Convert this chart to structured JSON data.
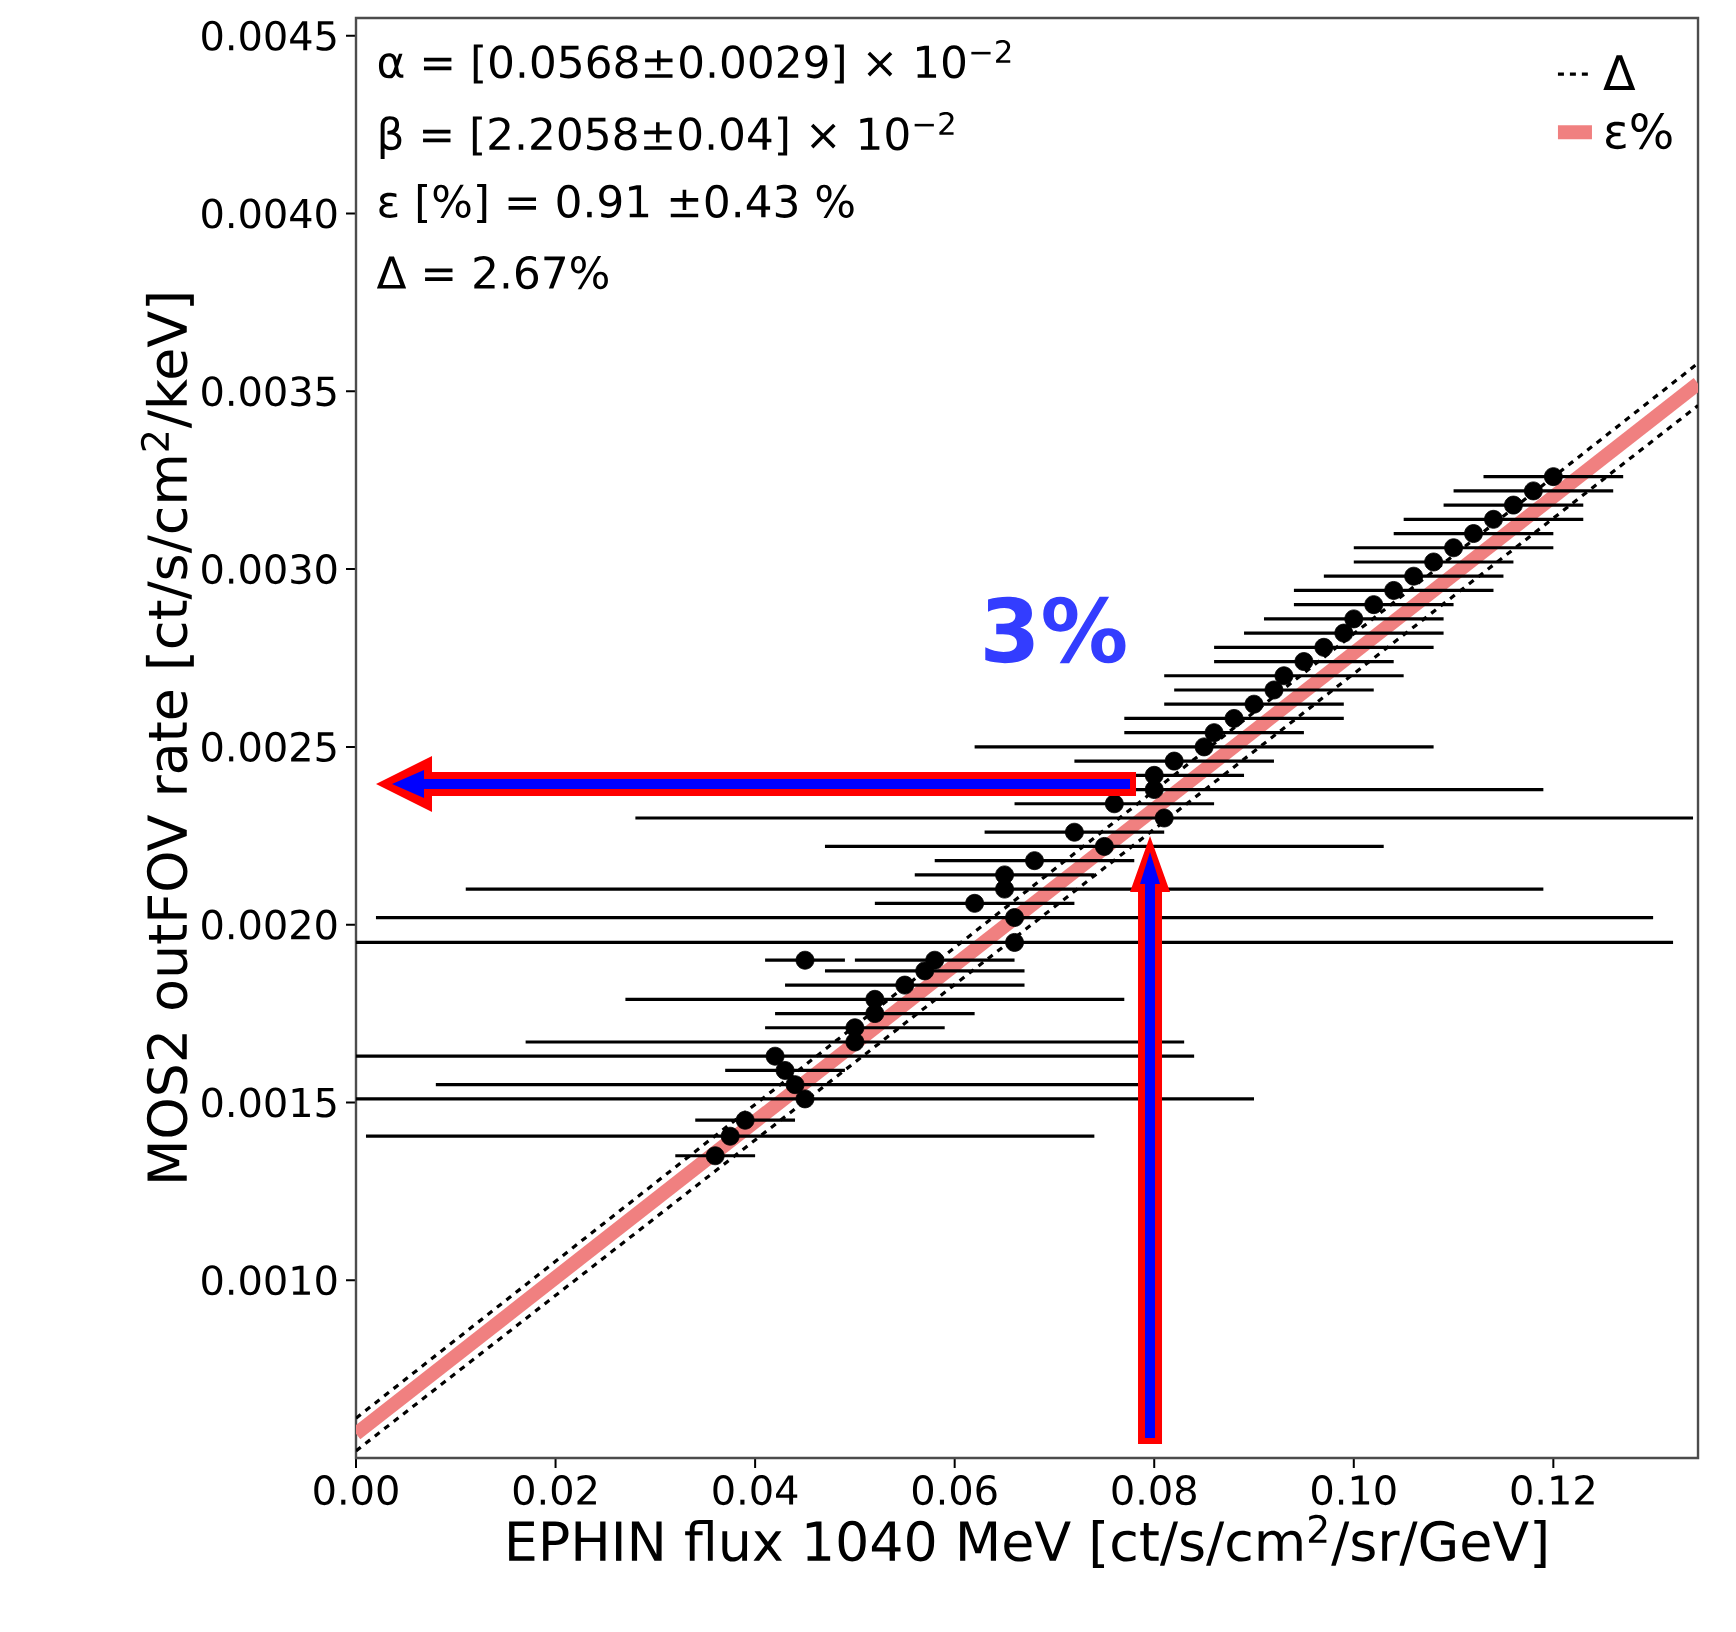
{
  "chart_data": {
    "type": "scatter",
    "xlabel": "EPHIN flux 1040 MeV [ct/s/cm$^{2}$/sr/GeV]",
    "ylabel": "MOS2 outFOV rate [ct/s/cm$^{2}$/keV]",
    "annotations": [
      "α = [0.0568±0.0029] × 10$^{−2}$",
      "β = [2.2058±0.04] × 10$^{−2}$",
      "ε [%] = 0.91 ±0.43 %",
      "Δ = 2.67%",
      "3%"
    ],
    "xlim": [
      0,
      0.1345
    ],
    "ylim": [
      0.0005,
      0.00455
    ],
    "xticks": [
      {
        "value": 0,
        "label": "0.00"
      },
      {
        "value": 0.02,
        "label": "0.02"
      },
      {
        "value": 0.04,
        "label": "0.04"
      },
      {
        "value": 0.06,
        "label": "0.06"
      },
      {
        "value": 0.08,
        "label": "0.08"
      },
      {
        "value": 0.1,
        "label": "0.10"
      },
      {
        "value": 0.12,
        "label": "0.12"
      }
    ],
    "yticks": [
      {
        "value": 0.001,
        "label": "0.0010"
      },
      {
        "value": 0.0015,
        "label": "0.0015"
      },
      {
        "value": 0.002,
        "label": "0.0020"
      },
      {
        "value": 0.0025,
        "label": "0.0025"
      },
      {
        "value": 0.003,
        "label": "0.0030"
      },
      {
        "value": 0.0035,
        "label": "0.0035"
      },
      {
        "value": 0.004,
        "label": "0.0040"
      },
      {
        "value": 0.0045,
        "label": "0.0045"
      }
    ],
    "legend": "top right",
    "series": [
      {
        "name": "Δ",
        "type": "line",
        "line_style": "dashed",
        "color": "#000000",
        "x": [
          0,
          0.1345
        ],
        "values": [
          0.000612,
          0.003579
        ]
      },
      {
        "name": "ε%",
        "type": "line",
        "line_style": "solid",
        "color": "#f08080",
        "x": [
          0,
          0.1345
        ],
        "values": [
          0.000568,
          0.003522
        ]
      },
      {
        "type": "line",
        "line_style": "dashed",
        "color": "#000000",
        "x": [
          0,
          0.1345
        ],
        "values": [
          0.00052,
          0.00346
        ]
      },
      {
        "color": "#000000",
        "x": [
          0.036,
          0.0375,
          0.039,
          0.045,
          0.044,
          0.043,
          0.042,
          0.05,
          0.05,
          0.052,
          0.052,
          0.055,
          0.057,
          0.058,
          0.045,
          0.066,
          0.066,
          0.062,
          0.065,
          0.065,
          0.068,
          0.075,
          0.072,
          0.081,
          0.076,
          0.08,
          0.08,
          0.082,
          0.085,
          0.086,
          0.088,
          0.09,
          0.092,
          0.093,
          0.095,
          0.097,
          0.099,
          0.1,
          0.102,
          0.104,
          0.106,
          0.108,
          0.11,
          0.112,
          0.114,
          0.116,
          0.118,
          0.12
        ],
        "values": [
          0.00135,
          0.001405,
          0.00145,
          0.00151,
          0.00155,
          0.00159,
          0.00163,
          0.00167,
          0.00171,
          0.00175,
          0.00179,
          0.00183,
          0.00187,
          0.0019,
          0.0019,
          0.00195,
          0.00202,
          0.00206,
          0.0021,
          0.00214,
          0.00218,
          0.00222,
          0.00226,
          0.0023,
          0.00234,
          0.00238,
          0.00242,
          0.00246,
          0.0025,
          0.00254,
          0.00258,
          0.00262,
          0.00266,
          0.0027,
          0.00274,
          0.00278,
          0.00282,
          0.00286,
          0.0029,
          0.00294,
          0.00298,
          0.00302,
          0.00306,
          0.0031,
          0.00314,
          0.00318,
          0.00322,
          0.00326
        ],
        "xerrors": [
          0.004,
          0.0365,
          0.005,
          0.045,
          0.036,
          0.006,
          0.042,
          0.033,
          0.009,
          0.01,
          0.025,
          0.012,
          0.01,
          0.008,
          0.004,
          0.066,
          0.064,
          0.01,
          0.054,
          0.009,
          0.01,
          0.028,
          0.009,
          0.053,
          0.01,
          0.039,
          0.009,
          0.01,
          0.023,
          0.009,
          0.011,
          0.009,
          0.01,
          0.012,
          0.009,
          0.011,
          0.01,
          0.009,
          0.008,
          0.01,
          0.009,
          0.008,
          0.01,
          0.008,
          0.009,
          0.007,
          0.008,
          0.007
        ]
      }
    ]
  }
}
